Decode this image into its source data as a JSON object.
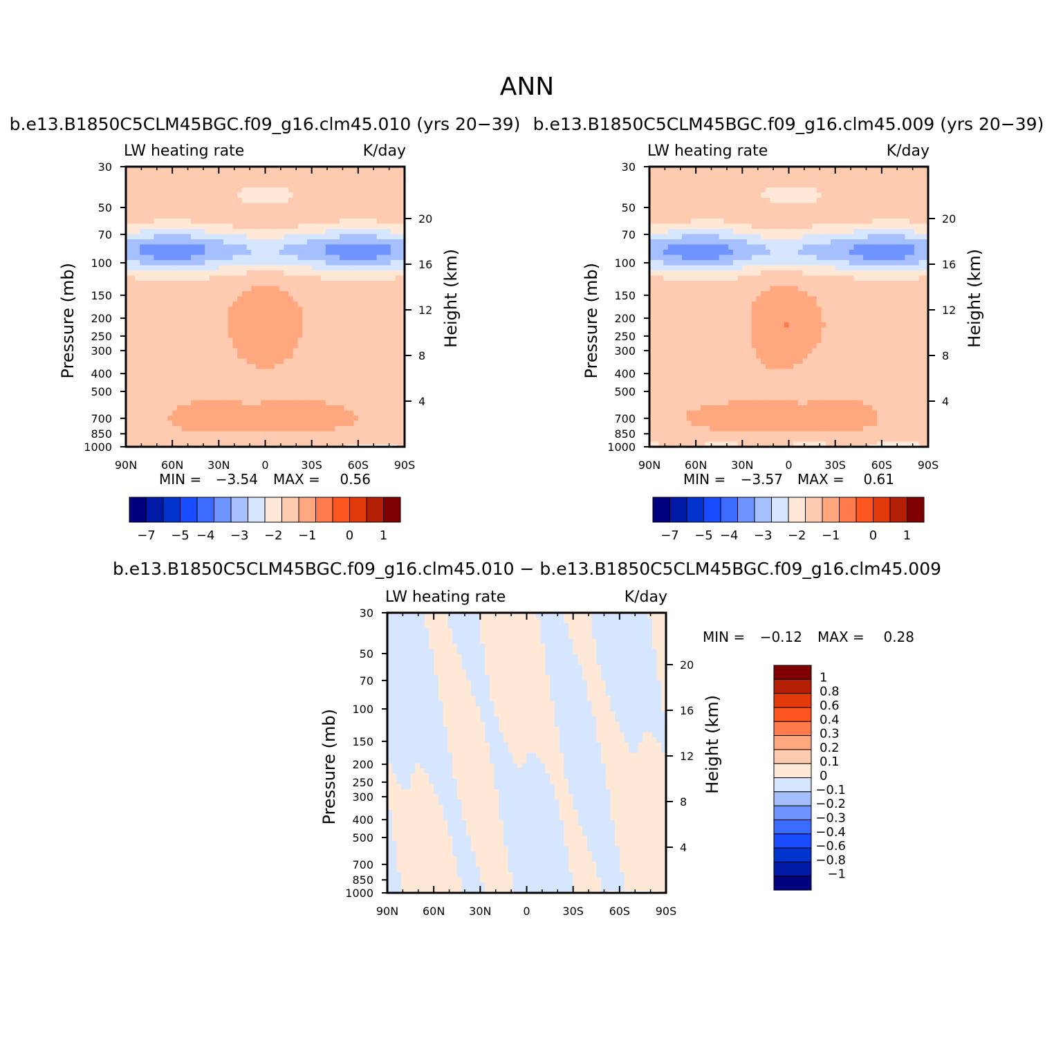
{
  "figure_title": "ANN",
  "colors": {
    "full_palette": [
      "#00007f",
      "#0019a6",
      "#0033cc",
      "#1a4cff",
      "#3b6bff",
      "#6f94ff",
      "#a6c0ff",
      "#d6e6ff",
      "#ffe8d6",
      "#ffcbb0",
      "#ffa880",
      "#ff7a4d",
      "#ff5520",
      "#e33a0c",
      "#b31f05",
      "#7f0000"
    ],
    "diff_palette": [
      "#00007f",
      "#0019a6",
      "#0033cc",
      "#1a4cff",
      "#3b6bff",
      "#6f94ff",
      "#a6c0ff",
      "#d6e6ff",
      "#ffe8d6",
      "#ffcbb0",
      "#ffa880",
      "#ff7a4d",
      "#ff5520",
      "#e33a0c",
      "#b31f05",
      "#7f0000"
    ],
    "missing": "#ffffff"
  },
  "chart_data": [
    {
      "id": "panel1",
      "type": "heatmap",
      "title": "b.e13.B1850C5CLM45BGC.f09_g16.clm45.010 (yrs 20−39)",
      "left_label": "LW heating rate",
      "right_label": "K/day",
      "ylabel": "Pressure (mb)",
      "y2label": "Height (km)",
      "x_ticks": [
        "90N",
        "60N",
        "30N",
        "0",
        "30S",
        "60S",
        "90S"
      ],
      "x_values": [
        90,
        60,
        30,
        0,
        -30,
        -60,
        -90
      ],
      "y_ticks": [
        "30",
        "50",
        "70",
        "100",
        "150",
        "200",
        "250",
        "300",
        "400",
        "500",
        "700",
        "850",
        "1000"
      ],
      "y_values": [
        30,
        50,
        70,
        100,
        150,
        200,
        250,
        300,
        400,
        500,
        700,
        850,
        1000
      ],
      "y2_ticks": [
        "20",
        "16",
        "12",
        "8",
        "4"
      ],
      "y2_values": [
        20,
        16,
        12,
        8,
        4
      ],
      "ylim": [
        1000,
        30
      ],
      "xlim": [
        90,
        -90
      ],
      "min_label": "MIN =",
      "min_value": "−3.54",
      "max_label": "MAX =",
      "max_value": "0.56",
      "colorbar_labels": [
        "−7",
        "−5",
        "−4",
        "−3",
        "−2",
        "−1",
        "0",
        "1"
      ],
      "colorbar_levels": [
        -8,
        -7,
        -6,
        -5,
        -4,
        -3.5,
        -3,
        -2.5,
        -2,
        -1.5,
        -1,
        -0.5,
        0,
        0.5,
        1
      ]
    },
    {
      "id": "panel2",
      "type": "heatmap",
      "title": "b.e13.B1850C5CLM45BGC.f09_g16.clm45.009 (yrs 20−39)",
      "left_label": "LW heating rate",
      "right_label": "K/day",
      "ylabel": "Pressure (mb)",
      "y2label": "Height (km)",
      "x_ticks": [
        "90N",
        "60N",
        "30N",
        "0",
        "30S",
        "60S",
        "90S"
      ],
      "x_values": [
        90,
        60,
        30,
        0,
        -30,
        -60,
        -90
      ],
      "y_ticks": [
        "30",
        "50",
        "70",
        "100",
        "150",
        "200",
        "250",
        "300",
        "400",
        "500",
        "700",
        "850",
        "1000"
      ],
      "y_values": [
        30,
        50,
        70,
        100,
        150,
        200,
        250,
        300,
        400,
        500,
        700,
        850,
        1000
      ],
      "y2_ticks": [
        "20",
        "16",
        "12",
        "8",
        "4"
      ],
      "y2_values": [
        20,
        16,
        12,
        8,
        4
      ],
      "ylim": [
        1000,
        30
      ],
      "xlim": [
        90,
        -90
      ],
      "min_label": "MIN =",
      "min_value": "−3.57",
      "max_label": "MAX =",
      "max_value": "0.61",
      "colorbar_labels": [
        "−7",
        "−5",
        "−4",
        "−3",
        "−2",
        "−1",
        "0",
        "1"
      ],
      "colorbar_levels": [
        -8,
        -7,
        -6,
        -5,
        -4,
        -3.5,
        -3,
        -2.5,
        -2,
        -1.5,
        -1,
        -0.5,
        0,
        0.5,
        1
      ]
    },
    {
      "id": "panel3",
      "type": "heatmap",
      "title": "b.e13.B1850C5CLM45BGC.f09_g16.clm45.010 − b.e13.B1850C5CLM45BGC.f09_g16.clm45.009",
      "left_label": "LW heating rate",
      "right_label": "K/day",
      "ylabel": "Pressure (mb)",
      "y2label": "Height (km)",
      "x_ticks": [
        "90N",
        "60N",
        "30N",
        "0",
        "30S",
        "60S",
        "90S"
      ],
      "x_values": [
        90,
        60,
        30,
        0,
        -30,
        -60,
        -90
      ],
      "y_ticks": [
        "30",
        "50",
        "70",
        "100",
        "150",
        "200",
        "250",
        "300",
        "400",
        "500",
        "700",
        "850",
        "1000"
      ],
      "y_values": [
        30,
        50,
        70,
        100,
        150,
        200,
        250,
        300,
        400,
        500,
        700,
        850,
        1000
      ],
      "y2_ticks": [
        "20",
        "16",
        "12",
        "8",
        "4"
      ],
      "y2_values": [
        20,
        16,
        12,
        8,
        4
      ],
      "ylim": [
        1000,
        30
      ],
      "xlim": [
        90,
        -90
      ],
      "min_label": "MIN =",
      "min_value": "−0.12",
      "max_label": "MAX =",
      "max_value": "0.28",
      "colorbar_labels": [
        "1",
        "0.8",
        "0.6",
        "0.4",
        "0.3",
        "0.2",
        "0.1",
        "0",
        "−0.1",
        "−0.2",
        "−0.3",
        "−0.4",
        "−0.6",
        "−0.8",
        "−1"
      ],
      "colorbar_levels": [
        -1,
        -0.8,
        -0.6,
        -0.4,
        -0.3,
        -0.2,
        -0.1,
        0,
        0.1,
        0.2,
        0.3,
        0.4,
        0.6,
        0.8,
        1
      ]
    }
  ]
}
